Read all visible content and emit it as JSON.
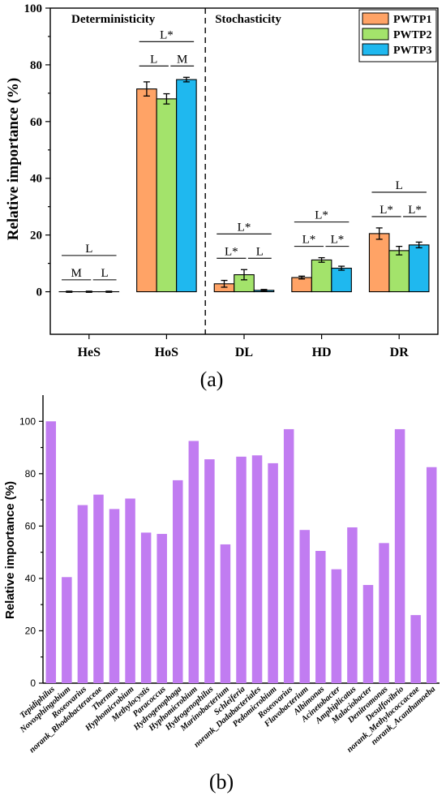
{
  "colors": {
    "PWTP1": "#ffa366",
    "PWTP2": "#a3e36b",
    "PWTP3": "#1fb8ef",
    "bar_b": "#c17cf1"
  },
  "panel_labels": {
    "a": "(a)",
    "b": "(b)"
  },
  "chart_data": [
    {
      "type": "bar",
      "xlabel": "",
      "ylabel": "Relative importance (%)",
      "ylim": [
        -15,
        100
      ],
      "yticks": [
        0,
        20,
        40,
        60,
        80,
        100
      ],
      "categories": [
        "HeS",
        "HoS",
        "DL",
        "HD",
        "DR"
      ],
      "legend_position": "top-right",
      "grid": false,
      "regions": [
        {
          "label": "Deterministicity",
          "categories": [
            "HeS",
            "HoS"
          ]
        },
        {
          "label": "Stochasticity",
          "categories": [
            "DL",
            "HD",
            "DR"
          ]
        }
      ],
      "series": [
        {
          "name": "PWTP1",
          "values": [
            0,
            71.5,
            2.8,
            5.0,
            20.5
          ],
          "errors": [
            0.2,
            2.5,
            1.2,
            0.5,
            2.0
          ]
        },
        {
          "name": "PWTP2",
          "values": [
            0,
            68.0,
            6.0,
            11.2,
            14.5
          ],
          "errors": [
            0.2,
            1.8,
            1.8,
            0.8,
            1.5
          ]
        },
        {
          "name": "PWTP3",
          "values": [
            0,
            74.8,
            0.5,
            8.3,
            16.5
          ],
          "errors": [
            0.2,
            0.8,
            0.3,
            0.7,
            1.0
          ]
        }
      ],
      "annotations": [
        {
          "category": "HeS",
          "pair": [
            1,
            2
          ],
          "label": "M"
        },
        {
          "category": "HeS",
          "pair": [
            2,
            3
          ],
          "label": "L"
        },
        {
          "category": "HeS",
          "pair": [
            1,
            3
          ],
          "label": "L"
        },
        {
          "category": "HoS",
          "pair": [
            1,
            2
          ],
          "label": "L"
        },
        {
          "category": "HoS",
          "pair": [
            2,
            3
          ],
          "label": "M"
        },
        {
          "category": "HoS",
          "pair": [
            1,
            3
          ],
          "label": "L*"
        },
        {
          "category": "DL",
          "pair": [
            1,
            2
          ],
          "label": "L*"
        },
        {
          "category": "DL",
          "pair": [
            2,
            3
          ],
          "label": "L"
        },
        {
          "category": "DL",
          "pair": [
            1,
            3
          ],
          "label": "L*"
        },
        {
          "category": "HD",
          "pair": [
            1,
            2
          ],
          "label": "L*"
        },
        {
          "category": "HD",
          "pair": [
            2,
            3
          ],
          "label": "L*"
        },
        {
          "category": "HD",
          "pair": [
            1,
            3
          ],
          "label": "L*"
        },
        {
          "category": "DR",
          "pair": [
            1,
            2
          ],
          "label": "L*"
        },
        {
          "category": "DR",
          "pair": [
            2,
            3
          ],
          "label": "L*"
        },
        {
          "category": "DR",
          "pair": [
            1,
            3
          ],
          "label": "L"
        }
      ]
    },
    {
      "type": "bar",
      "xlabel": "",
      "ylabel": "Relative importance (%)",
      "ylim": [
        0,
        110
      ],
      "yticks": [
        0,
        20,
        40,
        60,
        80,
        100
      ],
      "grid": false,
      "categories": [
        "Tepidiphilus",
        "Novosphingobium",
        "Roseovarius",
        "norank_Rhodobacteraceae",
        "Thermus",
        "Hyphomicrobium",
        "Methylocystis",
        "Paracoccus",
        "Hydrogenophaga",
        "Hyphomicrobium",
        "Hydrogenophilus",
        "Marinobacterium",
        "Schleiferia",
        "norank_Dadabacteriales",
        "Pedomicrobium",
        "Roseovarius",
        "Flavobacterium",
        "Albimonas",
        "Acinetobacter",
        "Amphiplicatus",
        "Malaciobacter",
        "Denitromonas",
        "Desulfovibrio",
        "norank_Methylococcaceae",
        "norank_Acanthamoeba"
      ],
      "values": [
        100,
        40.5,
        68,
        72,
        66.5,
        70.5,
        57.5,
        57,
        77.5,
        92.5,
        85.5,
        53,
        86.5,
        87,
        84,
        97,
        58.5,
        50.5,
        43.5,
        59.5,
        37.5,
        53.5,
        97,
        26,
        82.5
      ]
    }
  ]
}
